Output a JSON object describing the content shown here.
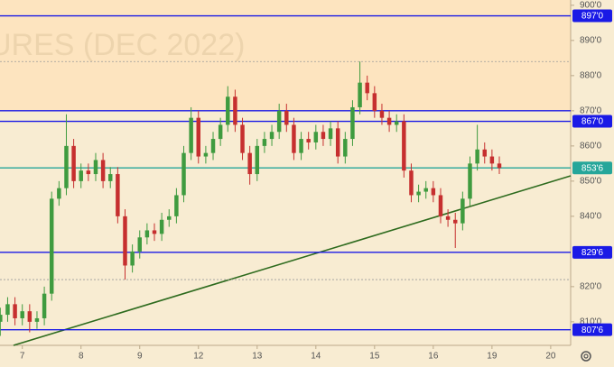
{
  "chart_data": {
    "type": "candlestick",
    "watermark": "URES (DEC 2022)",
    "up_color": "#3f9b3f",
    "down_color": "#c62f2f",
    "xlim": [
      -0.38,
      9.34
    ],
    "ylim": [
      803.3,
      901.5
    ],
    "xticks": [
      {
        "value": 0,
        "label": "7"
      },
      {
        "value": 1,
        "label": "8"
      },
      {
        "value": 2,
        "label": "9"
      },
      {
        "value": 3,
        "label": "12"
      },
      {
        "value": 4,
        "label": "13"
      },
      {
        "value": 5,
        "label": "14"
      },
      {
        "value": 6,
        "label": "15"
      },
      {
        "value": 7,
        "label": "16"
      },
      {
        "value": 8,
        "label": "19"
      },
      {
        "value": 9,
        "label": "20"
      }
    ],
    "yticks": [
      {
        "value": 900,
        "label": "900'0"
      },
      {
        "value": 890,
        "label": "890'0"
      },
      {
        "value": 880,
        "label": "880'0"
      },
      {
        "value": 870,
        "label": "870'0"
      },
      {
        "value": 860,
        "label": "860'0"
      },
      {
        "value": 850,
        "label": "850'0"
      },
      {
        "value": 840,
        "label": "840'0"
      },
      {
        "value": 820,
        "label": "820'0"
      },
      {
        "value": 810,
        "label": "810'0"
      }
    ],
    "levels": [
      {
        "value": 897,
        "label": "897'0",
        "color": "#1a1ae6"
      },
      {
        "value": 870,
        "color": "#1a1ae6"
      },
      {
        "value": 867,
        "label": "867'0",
        "color": "#1a1ae6"
      },
      {
        "value": 829.75,
        "label": "829'6",
        "color": "#1a1ae6"
      },
      {
        "value": 807.75,
        "label": "807'6",
        "color": "#1a1ae6"
      },
      {
        "value": 884,
        "color": "#9a9a9a"
      },
      {
        "value": 822,
        "color": "#9a9a9a"
      },
      {
        "value": 853.75,
        "label": "853'6",
        "color": "#26a69a"
      }
    ],
    "trendline": {
      "x": [
        -0.15,
        9.34
      ],
      "y": [
        803.3,
        851.5
      ],
      "color": "#2e6b1e"
    },
    "x": [
      -0.375,
      -0.25,
      -0.125,
      0,
      0.125,
      0.25,
      0.375,
      0.5,
      0.625,
      0.75,
      0.875,
      1,
      1.125,
      1.25,
      1.375,
      1.5,
      1.625,
      1.75,
      1.875,
      2,
      2.125,
      2.25,
      2.375,
      2.5,
      2.625,
      2.75,
      2.875,
      3,
      3.125,
      3.25,
      3.375,
      3.5,
      3.625,
      3.75,
      3.875,
      4,
      4.125,
      4.25,
      4.375,
      4.5,
      4.625,
      4.75,
      4.875,
      5,
      5.125,
      5.25,
      5.375,
      5.5,
      5.625,
      5.75,
      5.875,
      6,
      6.125,
      6.25,
      6.375,
      6.5,
      6.625,
      6.75,
      6.875,
      7,
      7.125,
      7.25,
      7.375,
      7.5,
      7.625,
      7.75,
      7.875,
      8,
      8.125
    ],
    "open": [
      810,
      812,
      815,
      811,
      813,
      810,
      811,
      818,
      845,
      848,
      860,
      850,
      853,
      852,
      856,
      850,
      852,
      840,
      826,
      830,
      834,
      836,
      835,
      839,
      840,
      846,
      858,
      868,
      857,
      858,
      862,
      866,
      874,
      866,
      858,
      852,
      860,
      862,
      864,
      870,
      866,
      858,
      862,
      861,
      864,
      862,
      865,
      857,
      862,
      871,
      878,
      875,
      870,
      868,
      866,
      867,
      853,
      846,
      847,
      848,
      846,
      840,
      839,
      838,
      845,
      855,
      859,
      857,
      855
    ],
    "high": [
      814,
      817,
      817,
      815,
      815,
      813,
      820,
      847,
      850,
      869,
      862,
      855,
      855,
      858,
      858,
      854,
      854,
      842,
      832,
      836,
      838,
      838,
      841,
      842,
      848,
      860,
      871,
      870,
      860,
      864,
      868,
      877,
      876,
      868,
      860,
      862,
      864,
      866,
      872,
      872,
      868,
      864,
      864,
      866,
      866,
      867,
      867,
      864,
      873,
      884,
      880,
      877,
      872,
      870,
      869,
      869,
      855,
      849,
      850,
      850,
      848,
      842,
      841,
      847,
      857,
      866,
      861,
      859,
      857
    ],
    "low": [
      806,
      810,
      809,
      809,
      807,
      808,
      809,
      816,
      843,
      846,
      848,
      848,
      850,
      850,
      848,
      848,
      838,
      822,
      824,
      828,
      832,
      833,
      833,
      837,
      838,
      844,
      856,
      855,
      855,
      856,
      860,
      864,
      864,
      856,
      849,
      850,
      858,
      860,
      862,
      864,
      856,
      856,
      859,
      859,
      860,
      860,
      855,
      855,
      860,
      869,
      873,
      868,
      866,
      864,
      864,
      851,
      844,
      844,
      845,
      844,
      838,
      837,
      831,
      836,
      843,
      853,
      855,
      853,
      852
    ],
    "close": [
      812,
      815,
      811,
      813,
      810,
      811,
      818,
      845,
      848,
      860,
      850,
      853,
      852,
      856,
      850,
      852,
      840,
      826,
      830,
      834,
      836,
      835,
      839,
      840,
      846,
      858,
      868,
      857,
      858,
      862,
      866,
      874,
      866,
      858,
      852,
      860,
      862,
      864,
      870,
      866,
      858,
      862,
      861,
      864,
      862,
      865,
      857,
      862,
      871,
      878,
      875,
      870,
      868,
      866,
      867,
      853,
      846,
      847,
      848,
      846,
      840,
      839,
      838,
      845,
      855,
      859,
      857,
      855,
      853.75
    ]
  }
}
